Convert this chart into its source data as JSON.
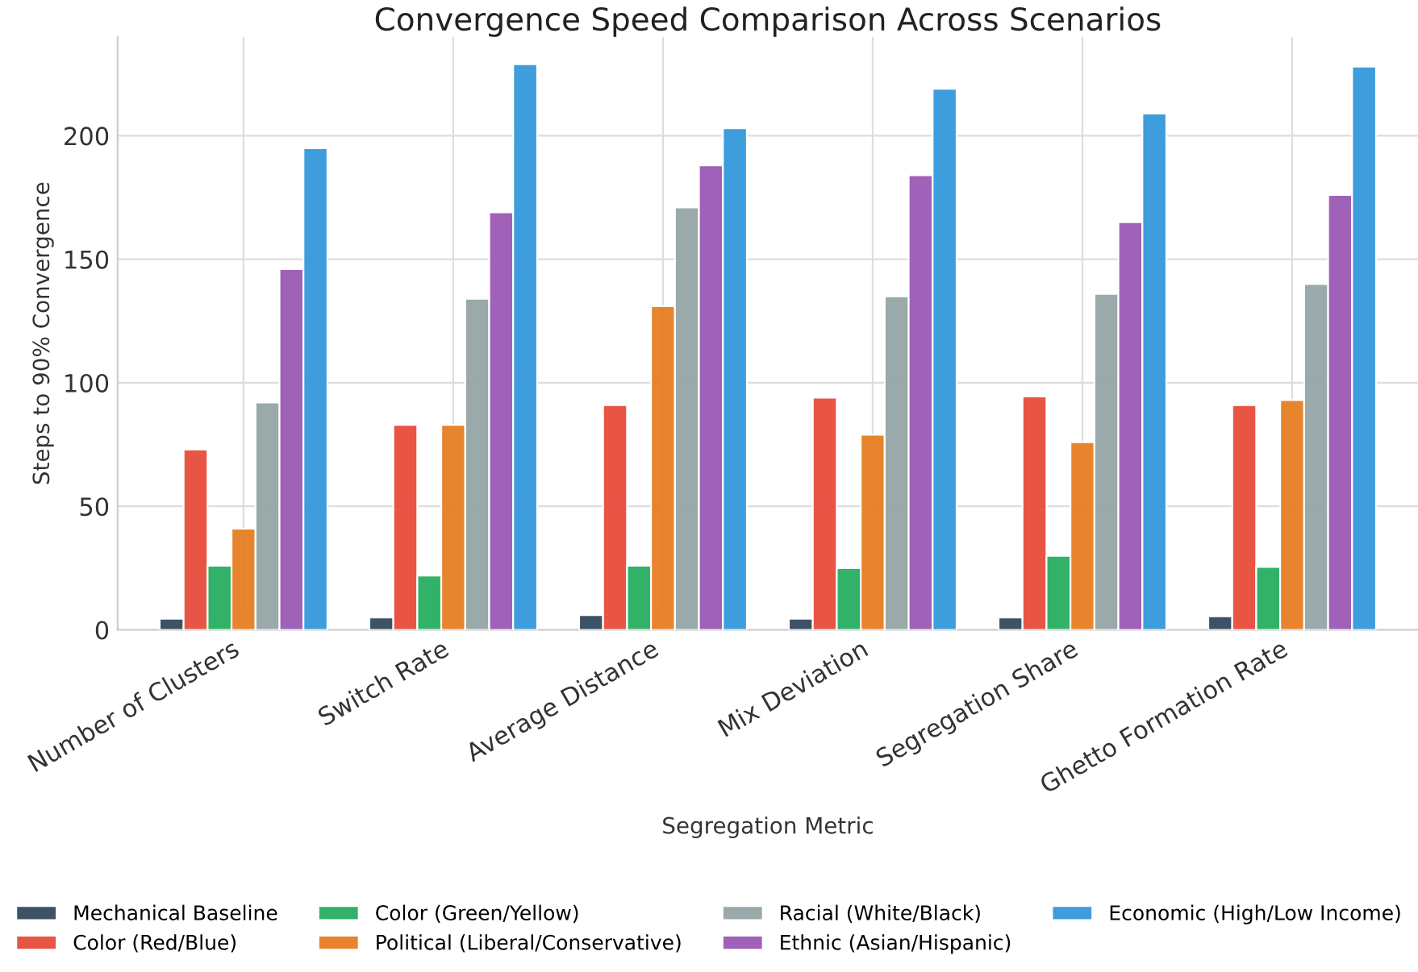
{
  "chart_data": {
    "type": "bar",
    "title": "Convergence Speed Comparison Across Scenarios",
    "xlabel": "Segregation Metric",
    "ylabel": "Steps to 90% Convergence",
    "categories": [
      "Number of Clusters",
      "Switch Rate",
      "Average Distance",
      "Mix Deviation",
      "Segregation Share",
      "Ghetto Formation Rate"
    ],
    "series": [
      {
        "name": "Mechanical Baseline",
        "color": "#34495e",
        "values": [
          4.5,
          5,
          6,
          4.5,
          5,
          5.5
        ]
      },
      {
        "name": "Color (Red/Blue)",
        "color": "#e74c3c",
        "values": [
          73,
          83,
          91,
          94,
          94.5,
          91
        ]
      },
      {
        "name": "Color (Green/Yellow)",
        "color": "#27ae60",
        "values": [
          26,
          22,
          26,
          25,
          30,
          25.5
        ]
      },
      {
        "name": "Political (Liberal/Conservative)",
        "color": "#e67e22",
        "values": [
          41,
          83,
          131,
          79,
          76,
          93
        ]
      },
      {
        "name": "Racial (White/Black)",
        "color": "#95a5a6",
        "values": [
          92,
          134,
          171,
          135,
          136,
          140
        ]
      },
      {
        "name": "Ethnic (Asian/Hispanic)",
        "color": "#9b59b6",
        "values": [
          146,
          169,
          188,
          184,
          165,
          176
        ]
      },
      {
        "name": "Economic (High/Low Income)",
        "color": "#3498db",
        "values": [
          195,
          229,
          203,
          219,
          209,
          228
        ]
      }
    ],
    "ylim": [
      0,
      240
    ],
    "yticks": [
      0,
      50,
      100,
      150,
      200
    ],
    "grid": true,
    "legend": "bottom"
  }
}
